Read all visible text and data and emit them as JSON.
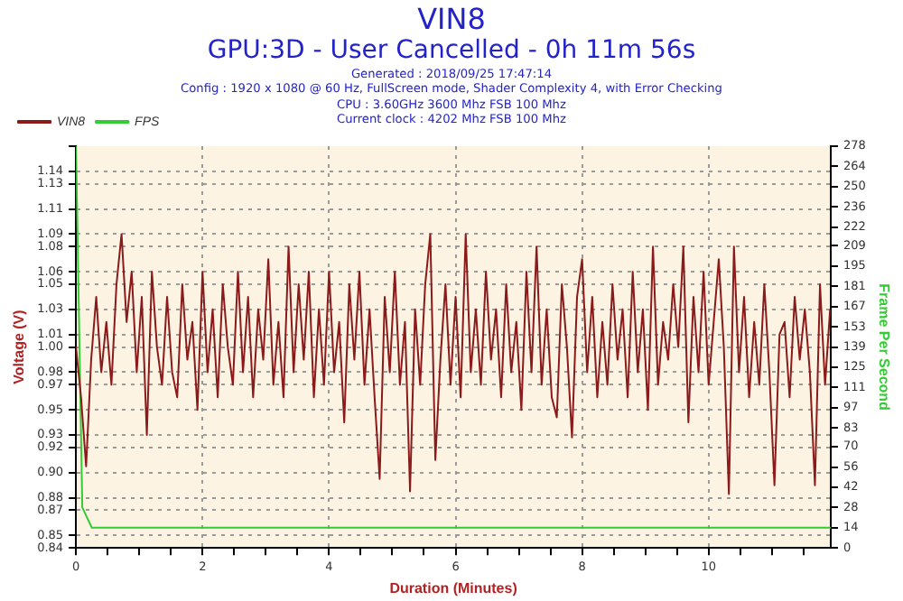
{
  "chart_data": {
    "type": "line",
    "title": "VIN8",
    "subtitle": "GPU:3D - User Cancelled - 0h 11m 56s",
    "annotations": [
      "Generated : 2018/09/25 17:47:14",
      "Config : 1920 x 1080 @ 60 Hz, FullScreen mode, Shader Complexity 4, with Error Checking",
      "CPU : 3.60GHz 3600 Mhz FSB 100 Mhz",
      "Current clock : 4202 Mhz FSB 100 Mhz"
    ],
    "xlabel": "Duration (Minutes)",
    "ylabel": "Voltage (V)",
    "y2label": "Frame Per Second",
    "x": [
      0,
      0.08,
      0.16,
      0.24,
      0.32,
      0.4,
      0.48,
      0.56,
      0.64,
      0.72,
      0.8,
      0.88,
      0.96,
      1.04,
      1.12,
      1.2,
      1.28,
      1.36,
      1.44,
      1.52,
      1.6,
      1.68,
      1.76,
      1.84,
      1.92,
      2,
      2.08,
      2.16,
      2.24,
      2.32,
      2.4,
      2.48,
      2.56,
      2.64,
      2.72,
      2.8,
      2.88,
      2.96,
      3.04,
      3.12,
      3.2,
      3.28,
      3.36,
      3.44,
      3.52,
      3.6,
      3.68,
      3.76,
      3.84,
      3.92,
      4,
      4.08,
      4.16,
      4.24,
      4.32,
      4.4,
      4.48,
      4.56,
      4.64,
      4.72,
      4.8,
      4.88,
      4.96,
      5.04,
      5.12,
      5.2,
      5.28,
      5.36,
      5.44,
      5.52,
      5.6,
      5.68,
      5.76,
      5.84,
      5.92,
      6,
      6.08,
      6.16,
      6.24,
      6.32,
      6.4,
      6.48,
      6.56,
      6.64,
      6.72,
      6.8,
      6.88,
      6.96,
      7.04,
      7.12,
      7.2,
      7.28,
      7.36,
      7.44,
      7.52,
      7.6,
      7.68,
      7.76,
      7.84,
      7.92,
      8,
      8.08,
      8.16,
      8.24,
      8.32,
      8.4,
      8.48,
      8.56,
      8.64,
      8.72,
      8.8,
      8.88,
      8.96,
      9.04,
      9.12,
      9.2,
      9.28,
      9.36,
      9.44,
      9.52,
      9.6,
      9.68,
      9.76,
      9.84,
      9.92,
      10,
      10.08,
      10.16,
      10.24,
      10.32,
      10.4,
      10.48,
      10.56,
      10.64,
      10.72,
      10.8,
      10.88,
      10.96,
      11.04,
      11.12,
      11.2,
      11.28,
      11.36,
      11.44,
      11.52,
      11.6,
      11.68,
      11.76,
      11.84,
      11.92
    ],
    "series": [
      {
        "name": "VIN8",
        "color": "#8b1a1a",
        "values": [
          1.0,
          0.96,
          0.905,
          0.99,
          1.04,
          0.98,
          1.02,
          0.97,
          1.05,
          1.09,
          1.02,
          1.06,
          0.98,
          1.04,
          0.93,
          1.06,
          1.0,
          0.97,
          1.04,
          0.98,
          0.96,
          1.05,
          0.99,
          1.02,
          0.95,
          1.06,
          0.98,
          1.03,
          0.96,
          1.05,
          1.0,
          0.97,
          1.06,
          0.98,
          1.04,
          0.96,
          1.03,
          0.99,
          1.07,
          0.97,
          1.02,
          0.96,
          1.08,
          0.98,
          1.05,
          0.99,
          1.06,
          0.96,
          1.03,
          0.97,
          1.06,
          0.98,
          1.02,
          0.94,
          1.05,
          0.99,
          1.06,
          0.97,
          1.03,
          0.96,
          0.895,
          1.04,
          0.98,
          1.06,
          0.97,
          1.02,
          0.885,
          1.03,
          0.97,
          1.05,
          1.09,
          0.91,
          0.99,
          1.05,
          0.97,
          1.04,
          0.96,
          1.09,
          0.98,
          1.03,
          0.97,
          1.06,
          0.99,
          1.03,
          0.96,
          1.05,
          0.98,
          1.02,
          0.95,
          1.06,
          0.98,
          1.08,
          0.97,
          1.03,
          0.96,
          0.944,
          1.05,
          1.0,
          0.928,
          1.04,
          1.07,
          0.98,
          1.04,
          0.96,
          1.02,
          0.97,
          1.05,
          0.99,
          1.03,
          0.96,
          1.06,
          0.98,
          1.03,
          0.95,
          1.08,
          0.97,
          1.02,
          0.99,
          1.05,
          1.0,
          1.08,
          0.94,
          1.04,
          0.98,
          1.06,
          0.97,
          1.02,
          1.07,
          1.0,
          0.883,
          1.08,
          0.98,
          1.04,
          0.96,
          1.02,
          0.97,
          1.05,
          0.98,
          0.89,
          1.01,
          1.02,
          0.96,
          1.04,
          0.99,
          1.03,
          0.98,
          0.89,
          1.05,
          0.97,
          1.03
        ]
      },
      {
        "name": "FPS",
        "color": "#33cc33",
        "axis": "y2",
        "x": [
          0,
          0.1,
          0.25,
          11.93
        ],
        "values": [
          278,
          28,
          14,
          14
        ]
      }
    ],
    "xlim": [
      0,
      11.93
    ],
    "xticks": [
      0,
      {
        "value": 0.5,
        "label": null
      },
      {
        "value": 1,
        "label": null
      },
      {
        "value": 1.5,
        "label": null
      },
      2,
      {
        "value": 2.5,
        "label": null
      },
      {
        "value": 3,
        "label": null
      },
      {
        "value": 3.5,
        "label": null
      },
      4,
      {
        "value": 4.5,
        "label": null
      },
      {
        "value": 5,
        "label": null
      },
      {
        "value": 5.5,
        "label": null
      },
      6,
      {
        "value": 6.5,
        "label": null
      },
      {
        "value": 7,
        "label": null
      },
      {
        "value": 7.5,
        "label": null
      },
      8,
      {
        "value": 8.5,
        "label": null
      },
      {
        "value": 9,
        "label": null
      },
      {
        "value": 9.5,
        "label": null
      },
      10,
      {
        "value": 10.5,
        "label": null
      },
      {
        "value": 11,
        "label": null
      },
      {
        "value": 11.5,
        "label": null
      }
    ],
    "ylim": [
      0.84,
      1.16
    ],
    "yticks": [
      0.84,
      0.85,
      0.87,
      0.88,
      {
        "value": 0.9,
        "label": "0.90"
      },
      0.92,
      0.93,
      0.95,
      0.97,
      0.98,
      {
        "value": 1.0,
        "label": "1.00"
      },
      1.01,
      1.03,
      1.05,
      1.06,
      1.08,
      1.09,
      1.11,
      1.13,
      1.14,
      {
        "value": 1.16,
        "label": null
      }
    ],
    "y2lim": [
      0,
      278
    ],
    "y2ticks": [
      0,
      14,
      28,
      42,
      56,
      70,
      83,
      97,
      111,
      125,
      139,
      153,
      167,
      181,
      195,
      209,
      222,
      236,
      250,
      264,
      278
    ],
    "grid": true,
    "legend": "top left",
    "marker": "none",
    "line_style": "solid"
  }
}
